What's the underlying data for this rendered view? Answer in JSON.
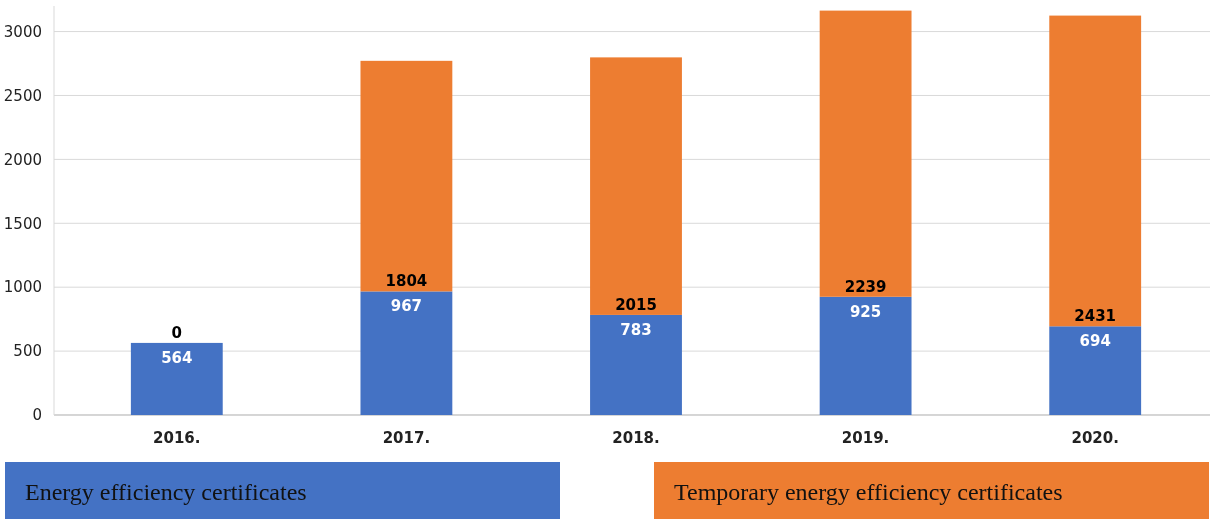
{
  "chart_data": {
    "type": "bar",
    "stacked": true,
    "categories": [
      "2016.",
      "2017.",
      "2018.",
      "2019.",
      "2020."
    ],
    "series": [
      {
        "name": "Energy efficiency certificates",
        "color": "#4472c4",
        "values": [
          564,
          967,
          783,
          925,
          694
        ]
      },
      {
        "name": "Temporary energy efficiency certificates",
        "color": "#ed7d31",
        "values": [
          0,
          1804,
          2015,
          2239,
          2431
        ]
      }
    ],
    "ylim": [
      0,
      3200
    ],
    "yticks": [
      0,
      500,
      1000,
      1500,
      2000,
      2500,
      3000
    ],
    "grid": "y",
    "data_labels": true,
    "legend": "bottom"
  }
}
